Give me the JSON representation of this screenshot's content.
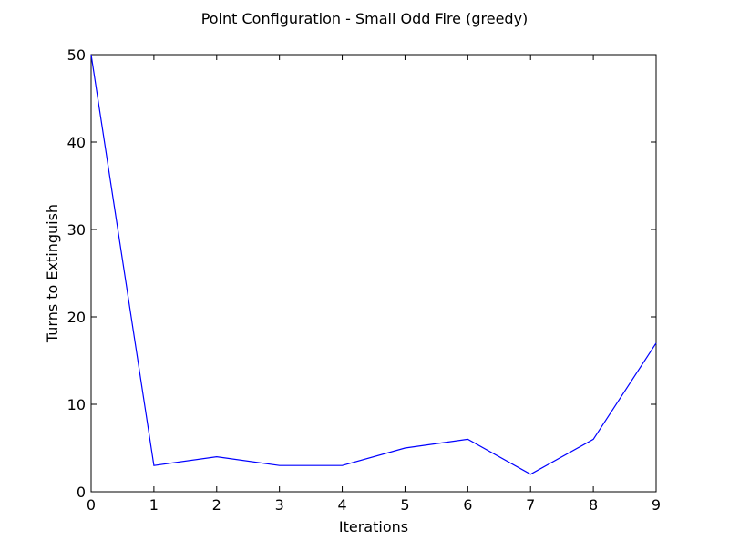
{
  "chart_data": {
    "type": "line",
    "title": "Point Configuration - Small Odd Fire (greedy)",
    "xlabel": "Iterations",
    "ylabel": "Turns to Extinguish",
    "xlim": [
      0,
      9
    ],
    "ylim": [
      0,
      50
    ],
    "xticks": [
      0,
      1,
      2,
      3,
      4,
      5,
      6,
      7,
      8,
      9
    ],
    "yticks": [
      0,
      10,
      20,
      30,
      40,
      50
    ],
    "grid": false,
    "legend": "none",
    "series": [
      {
        "color": "#0000ff",
        "x": [
          0,
          1,
          2,
          3,
          4,
          5,
          6,
          7,
          8,
          9
        ],
        "y": [
          50,
          3,
          4,
          3,
          3,
          5,
          6,
          2,
          6,
          17
        ]
      }
    ]
  }
}
